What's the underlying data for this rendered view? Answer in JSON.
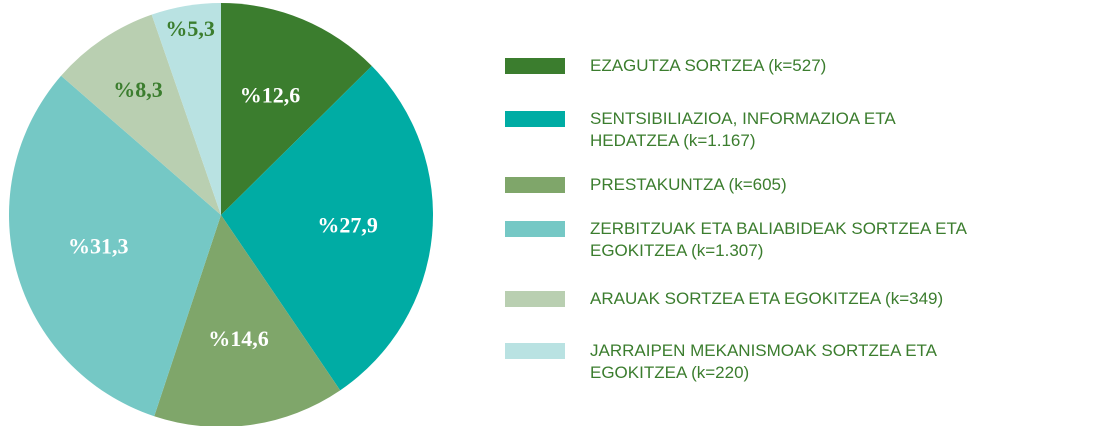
{
  "chart_data": {
    "type": "pie",
    "categories": [
      "EZAGUTZA SORTZEA (k=527)",
      "SENTSIBILIAZIOA, INFORMAZIOA ETA\nHEDATZEA  (k=1.167)",
      "PRESTAKUNTZA (k=605)",
      "ZERBITZUAK ETA BALIABIDEAK SORTZEA ETA\nEGOKITZEA (k=1.307)",
      "ARAUAK SORTZEA ETA EGOKITZEA (k=349)",
      "JARRAIPEN MEKANISMOAK SORTZEA ETA\nEGOKITZEA  (k=220)"
    ],
    "values": [
      12.6,
      27.9,
      14.6,
      31.3,
      8.3,
      5.3
    ],
    "value_labels": [
      "%12,6",
      "%27,9",
      "%14,6",
      "%31,3",
      "%8,3",
      "%5,3"
    ],
    "colors": [
      "#3b7d2e",
      "#00aca4",
      "#7fa66a",
      "#75c8c5",
      "#b9cfb1",
      "#b9e2e2"
    ],
    "legend": "right"
  }
}
